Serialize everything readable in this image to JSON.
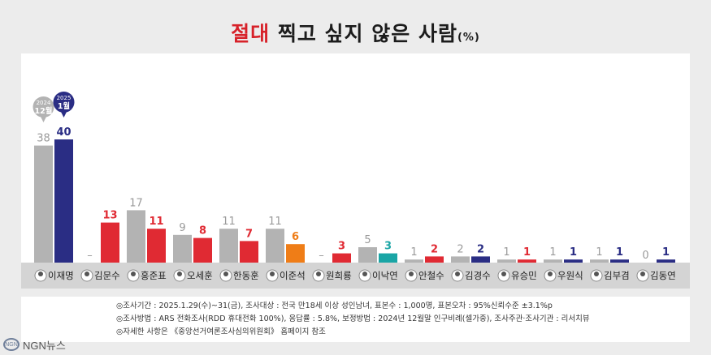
{
  "title": {
    "highlight": "절대",
    "main": " 찍고 싶지 않은 사람",
    "unit": "(%)"
  },
  "chart_data": {
    "type": "bar",
    "ylim": [
      0,
      45
    ],
    "categories": [
      "이재명",
      "김문수",
      "홍준표",
      "오세훈",
      "한동훈",
      "이준석",
      "원희룡",
      "이낙연",
      "안철수",
      "김경수",
      "유승민",
      "우원식",
      "김부겸",
      "김동연"
    ],
    "series": [
      {
        "name": "2024 12월",
        "color": "#b3b3b3",
        "values": [
          38,
          null,
          17,
          9,
          11,
          11,
          null,
          5,
          1,
          2,
          1,
          1,
          1,
          0
        ],
        "labels": [
          "38",
          "–",
          "17",
          "9",
          "11",
          "11",
          "–",
          "5",
          "1",
          "2",
          "1",
          "1",
          "1",
          "0"
        ]
      },
      {
        "name": "2025 1월",
        "colors": [
          "#2a2d84",
          "#e02a33",
          "#e02a33",
          "#e02a33",
          "#e02a33",
          "#ef7d17",
          "#e02a33",
          "#1aa5a5",
          "#e02a33",
          "#2a2d84",
          "#e02a33",
          "#2a2d84",
          "#2a2d84",
          "#2a2d84"
        ],
        "values": [
          40,
          13,
          11,
          8,
          7,
          6,
          3,
          3,
          2,
          2,
          1,
          1,
          1,
          1
        ],
        "labels": [
          "40",
          "13",
          "11",
          "8",
          "7",
          "6",
          "3",
          "3",
          "2",
          "2",
          "1",
          "1",
          "1",
          "1"
        ]
      }
    ],
    "callouts": [
      {
        "line1": "2024",
        "line2": "12월",
        "color": "#b3b3b3"
      },
      {
        "line1": "2025",
        "line2": "1월",
        "color": "#2a2d84"
      }
    ]
  },
  "notes": {
    "line1": "◎조사기간 : 2025.1.29(수)~31(금), 조사대상 : 전국 만18세 이상 성인남녀, 표본수 : 1,000명, 표본오차 : 95%신뢰수준 ±3.1%p",
    "line2": "◎조사방법 : ARS 전화조사(RDD 휴대전화 100%), 응답률 : 5.8%, 보정방법 : 2024년 12월말 인구비례(셀가중), 조사주관·조사기관 : 리서치뷰",
    "line3": "◎자세한 사항은 《중앙선거여론조사심의위원회》 홈페이지 참조"
  },
  "logo": {
    "mark": "NGN",
    "text": "NGN뉴스"
  }
}
